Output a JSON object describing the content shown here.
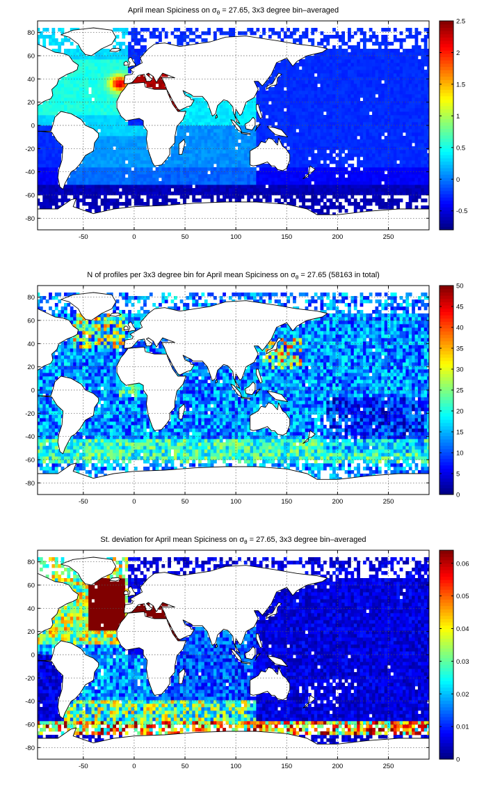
{
  "chart_data": [
    {
      "type": "heatmap",
      "title_prefix": "April mean Spiciness on σ",
      "title_sub": "θ",
      "title_suffix": " = 27.65, 3x3 degree bin–averaged",
      "xlim": [
        -95,
        290
      ],
      "ylim": [
        -90,
        90
      ],
      "xticks": [
        -50,
        0,
        50,
        100,
        150,
        200,
        250
      ],
      "yticks": [
        -80,
        -60,
        -40,
        -20,
        0,
        20,
        40,
        60,
        80
      ],
      "colorbar": {
        "min": -0.8,
        "max": 2.5,
        "ticks": [
          "-0.5",
          "0",
          "0.5",
          "1",
          "1.5",
          "2",
          "2.5"
        ],
        "tick_values": [
          -0.5,
          0,
          0.5,
          1,
          1.5,
          2,
          2.5
        ]
      },
      "colormap": "jet",
      "grid": true,
      "regions_approx": [
        {
          "region": "Mediterranean outflow (NE Atlantic, ~35N)",
          "value": 2.0
        },
        {
          "region": "Mediterranean Sea",
          "value": 2.4
        },
        {
          "region": "Red Sea",
          "value": 2.4
        },
        {
          "region": "North Atlantic (20N–60N)",
          "value": 0.6
        },
        {
          "region": "Arabian Sea / N Indian Ocean",
          "value": 0.3
        },
        {
          "region": "South Atlantic",
          "value": 0.05
        },
        {
          "region": "South Indian Ocean",
          "value": -0.1
        },
        {
          "region": "Pacific Ocean",
          "value": -0.3
        },
        {
          "region": "Southern Ocean (<50S)",
          "value": -0.55
        }
      ]
    },
    {
      "type": "heatmap",
      "title_prefix": "N of profiles per 3x3 degree bin for April mean Spiciness on σ",
      "title_sub": "θ",
      "title_suffix": " = 27.65 (58163 in total)",
      "total_profiles": 58163,
      "xlim": [
        -95,
        290
      ],
      "ylim": [
        -90,
        90
      ],
      "xticks": [
        -50,
        0,
        50,
        100,
        150,
        200,
        250
      ],
      "yticks": [
        -80,
        -60,
        -40,
        -20,
        0,
        20,
        40,
        60,
        80
      ],
      "colorbar": {
        "min": 0,
        "max": 50,
        "ticks": [
          "0",
          "5",
          "10",
          "15",
          "20",
          "25",
          "30",
          "35",
          "40",
          "45",
          "50"
        ],
        "tick_values": [
          0,
          5,
          10,
          15,
          20,
          25,
          30,
          35,
          40,
          45,
          50
        ]
      },
      "colormap": "jet",
      "grid": true,
      "regions_approx": [
        {
          "region": "Kuroshio extension (NW Pacific)",
          "value": 40
        },
        {
          "region": "North Atlantic subpolar",
          "value": 38
        },
        {
          "region": "Southern Ocean (45S–60S)",
          "value": 22
        },
        {
          "region": "Tropical/Subtropical basins",
          "value": 14
        },
        {
          "region": "Southeast Pacific",
          "value": 8
        }
      ]
    },
    {
      "type": "heatmap",
      "title_prefix": "St. deviation for April mean Spiciness on σ",
      "title_sub": "θ",
      "title_suffix": " = 27.65, 3x3 degree bin–averaged",
      "xlim": [
        -95,
        290
      ],
      "ylim": [
        -90,
        90
      ],
      "xticks": [
        -50,
        0,
        50,
        100,
        150,
        200,
        250
      ],
      "yticks": [
        -80,
        -60,
        -40,
        -20,
        0,
        20,
        40,
        60,
        80
      ],
      "colorbar": {
        "min": 0,
        "max": 0.064,
        "ticks": [
          "0",
          "0.01",
          "0.02",
          "0.03",
          "0.04",
          "0.05",
          "0.06"
        ],
        "tick_values": [
          0,
          0.01,
          0.02,
          0.03,
          0.04,
          0.05,
          0.06
        ]
      },
      "colormap": "jet",
      "grid": true,
      "regions_approx": [
        {
          "region": "North Atlantic (20N–65N)",
          "value": 0.064
        },
        {
          "region": "Southern Ocean front (~60S)",
          "value": 0.045
        },
        {
          "region": "Atlantic Southern Ocean (~45S)",
          "value": 0.03
        },
        {
          "region": "Indian Ocean",
          "value": 0.01
        },
        {
          "region": "Pacific Ocean",
          "value": 0.003
        }
      ]
    }
  ]
}
